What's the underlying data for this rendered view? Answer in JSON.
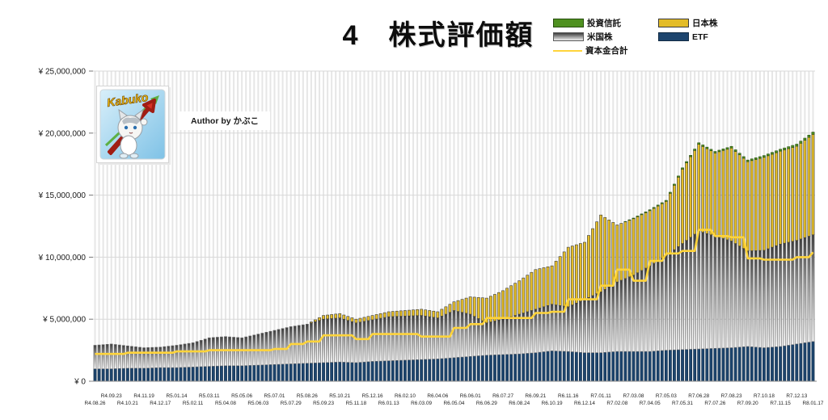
{
  "title": "4　株式評価額",
  "author_label": "Author by かぶこ",
  "mascot": {
    "name": "Kabuko"
  },
  "legend": {
    "items": [
      {
        "id": "toushishintaku",
        "label": "投資信託",
        "type": "box",
        "color": "#4f9120",
        "border": "#274d0e"
      },
      {
        "id": "nihonkabu",
        "label": "日本株",
        "type": "box",
        "color": "#E3BC28",
        "border": "#3a3a3a"
      },
      {
        "id": "beikokukabu",
        "label": "米国株",
        "type": "box-gradient",
        "color": "#9a9a9a",
        "border": "#5a5a5a"
      },
      {
        "id": "etf",
        "label": "ETF",
        "type": "box",
        "color": "#1D456E",
        "border": "#122B44"
      },
      {
        "id": "shihonkin",
        "label": "資本金合計",
        "type": "line",
        "color": "#FFD43B",
        "border": "#FFD43B"
      }
    ]
  },
  "y_axis": {
    "ticks": [
      "¥ 25,000,000",
      "¥ 20,000,000",
      "¥ 15,000,000",
      "¥ 10,000,000",
      "¥ 5,000,000",
      "¥ 0"
    ],
    "values_million": [
      25,
      20,
      15,
      10,
      5,
      0
    ]
  },
  "chart_data": {
    "type": "bar",
    "subtype": "stacked-weekly-bars-with-step-line",
    "title": "4　株式評価額",
    "unit": "million JPY (values estimated from axis)",
    "ylim_million": [
      0,
      25
    ],
    "grid": "horizontal major + per-category vertical stripes",
    "legend_position": "top-right",
    "weeks_per_labeled_tick": 4,
    "categories": [
      "R4.08.26",
      "R4.09.23",
      "R4.10.21",
      "R4.11.19",
      "R4.12.17",
      "R5.01.14",
      "R5.02.11",
      "R5.03.11",
      "R5.04.08",
      "R5.05.06",
      "R5.06.03",
      "R5.07.01",
      "R5.07.29",
      "R5.08.26",
      "R5.09.23",
      "R5.10.21",
      "R5.11.18",
      "R5.12.16",
      "R6.01.13",
      "R6.02.10",
      "R6.03.09",
      "R6.04.06",
      "R6.05.04",
      "R6.06.01",
      "R6.06.29",
      "R6.07.27",
      "R6.08.24",
      "R6.09.21",
      "R6.10.19",
      "R6.11.16",
      "R6.12.14",
      "R7.01.11",
      "R7.02.08",
      "R7.03.08",
      "R7.04.05",
      "R7.05.03",
      "R7.05.31",
      "R7.06.28",
      "R7.07.26",
      "R7.08.23",
      "R7.09.20",
      "R7.10.18",
      "R7.11.15",
      "R7.12.13",
      "R8.01.17"
    ],
    "series": [
      {
        "name": "ETF",
        "stack_order": 1,
        "color": "#1D456E",
        "border": "#122B44",
        "values": [
          1.0,
          1.0,
          1.05,
          1.05,
          1.1,
          1.1,
          1.15,
          1.2,
          1.25,
          1.25,
          1.3,
          1.35,
          1.4,
          1.45,
          1.5,
          1.55,
          1.5,
          1.6,
          1.65,
          1.7,
          1.75,
          1.8,
          1.9,
          2.0,
          2.1,
          2.15,
          2.2,
          2.3,
          2.45,
          2.4,
          2.3,
          2.3,
          2.4,
          2.4,
          2.4,
          2.5,
          2.55,
          2.6,
          2.65,
          2.7,
          2.8,
          2.7,
          2.8,
          3.0,
          3.2
        ]
      },
      {
        "name": "米国株",
        "stack_order": 2,
        "color": "gradient-gray",
        "border": "#6f6f6f",
        "values": [
          1.9,
          2.0,
          1.8,
          1.65,
          1.65,
          1.8,
          1.95,
          2.3,
          2.35,
          2.25,
          2.5,
          2.75,
          3.0,
          3.15,
          3.5,
          3.55,
          3.2,
          3.35,
          3.55,
          3.55,
          3.55,
          3.3,
          3.8,
          3.4,
          2.6,
          2.85,
          3.2,
          3.5,
          3.75,
          3.6,
          4.3,
          4.9,
          5.6,
          6.15,
          6.9,
          7.6,
          8.55,
          9.5,
          9.05,
          8.6,
          7.7,
          7.85,
          8.25,
          8.35,
          8.6
        ]
      },
      {
        "name": "日本株",
        "stack_order": 3,
        "color": "#E3BC28",
        "border": "#3a3a3a",
        "values": [
          0,
          0,
          0,
          0,
          0,
          0,
          0,
          0,
          0,
          0,
          0,
          0,
          0,
          0,
          0.3,
          0.35,
          0.3,
          0.35,
          0.4,
          0.45,
          0.5,
          0.5,
          0.7,
          1.4,
          2.0,
          2.3,
          2.7,
          3.2,
          3.1,
          4.8,
          4.6,
          6.2,
          4.6,
          4.55,
          4.45,
          4.4,
          6.0,
          7.0,
          6.7,
          7.5,
          7.2,
          7.5,
          7.5,
          7.6,
          8.1
        ]
      },
      {
        "name": "投資信託",
        "stack_order": 4,
        "color": "#4f9120",
        "border": "#274d0e",
        "values": [
          0,
          0,
          0,
          0,
          0,
          0,
          0,
          0,
          0,
          0,
          0,
          0,
          0,
          0,
          0,
          0,
          0,
          0,
          0,
          0,
          0,
          0,
          0,
          0,
          0,
          0,
          0,
          0,
          0,
          0,
          0,
          0,
          0,
          0.05,
          0.07,
          0.08,
          0.1,
          0.12,
          0.12,
          0.13,
          0.13,
          0.14,
          0.15,
          0.16,
          0.18
        ]
      }
    ],
    "line": {
      "name": "資本金合計",
      "color": "#FFD43B",
      "style": "step",
      "values": [
        2.2,
        2.2,
        2.3,
        2.3,
        2.3,
        2.4,
        2.4,
        2.5,
        2.5,
        2.5,
        2.5,
        2.6,
        3.0,
        3.2,
        3.7,
        3.7,
        3.4,
        3.8,
        3.8,
        3.8,
        3.6,
        3.6,
        4.3,
        4.6,
        5.1,
        5.1,
        5.1,
        5.5,
        5.6,
        6.6,
        6.6,
        7.7,
        9.0,
        8.1,
        9.7,
        10.3,
        10.5,
        12.2,
        11.7,
        11.6,
        9.9,
        9.8,
        9.8,
        10.0,
        10.4
      ]
    }
  }
}
